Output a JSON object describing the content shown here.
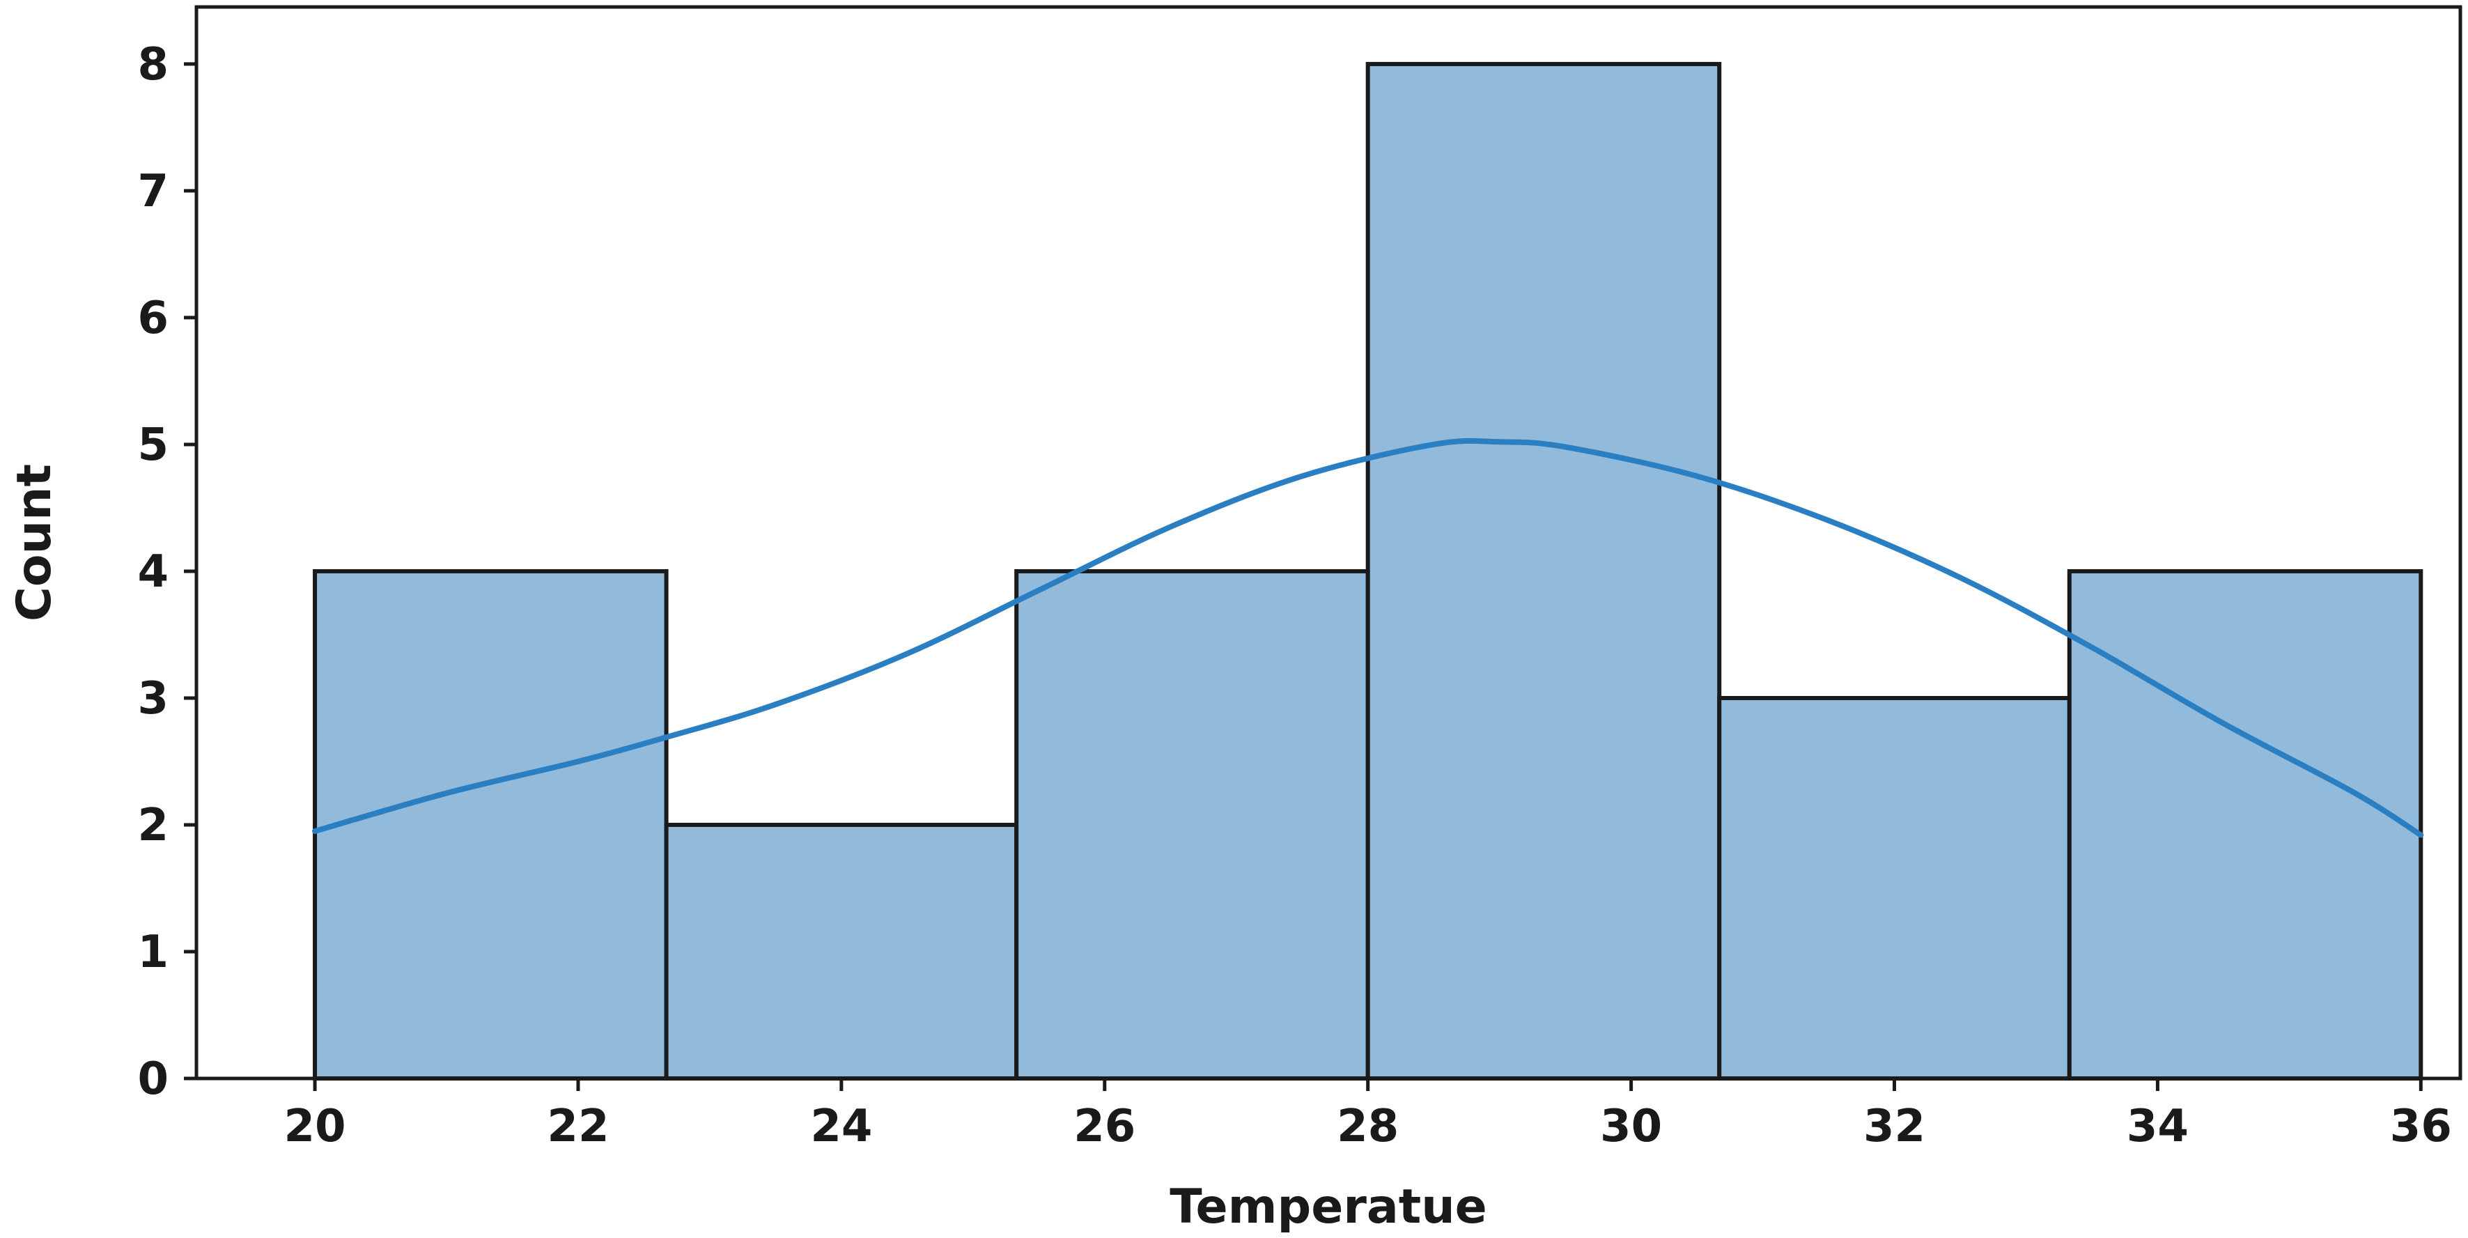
{
  "chart_data": {
    "type": "bar",
    "subtype": "histogram",
    "xlabel": "Temperatue",
    "ylabel": "Count",
    "xlim": [
      19.1,
      36.3
    ],
    "ylim": [
      0,
      8.45
    ],
    "xticks": [
      20,
      22,
      24,
      26,
      28,
      30,
      32,
      34,
      36
    ],
    "yticks": [
      0,
      1,
      2,
      3,
      4,
      5,
      6,
      7,
      8
    ],
    "bins": [
      {
        "start": 20.0,
        "end": 22.67,
        "count": 4
      },
      {
        "start": 22.67,
        "end": 25.33,
        "count": 2
      },
      {
        "start": 25.33,
        "end": 28.0,
        "count": 4
      },
      {
        "start": 28.0,
        "end": 30.67,
        "count": 8
      },
      {
        "start": 30.67,
        "end": 33.33,
        "count": 3
      },
      {
        "start": 33.33,
        "end": 36.0,
        "count": 4
      }
    ],
    "kde": {
      "x": [
        20,
        21,
        22,
        22.7,
        23.5,
        24.5,
        25.5,
        26.5,
        27.5,
        28.5,
        29.0,
        29.5,
        30.5,
        31.5,
        32.5,
        33.5,
        34.5,
        35.5,
        36
      ],
      "y": [
        1.95,
        2.25,
        2.5,
        2.7,
        2.95,
        3.35,
        3.85,
        4.35,
        4.75,
        5.0,
        5.02,
        4.98,
        4.75,
        4.4,
        3.95,
        3.4,
        2.8,
        2.25,
        1.92
      ]
    },
    "grid": false,
    "colors": {
      "bar_fill": "#92badb",
      "bar_edge": "#1a1a1a",
      "kde": "#2a7fc3"
    }
  }
}
